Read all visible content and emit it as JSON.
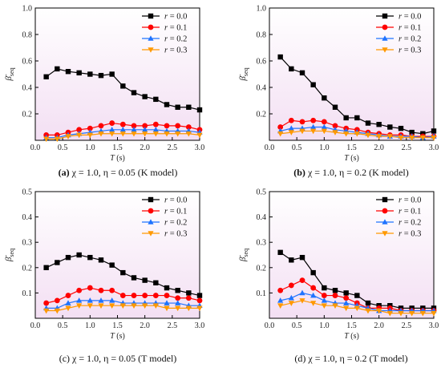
{
  "colors": {
    "plot_bg_top": "#ffffff",
    "plot_bg_bottom": "#f3dff3",
    "series": [
      "#000000",
      "#ff0000",
      "#1e73ff",
      "#ff9900"
    ],
    "markers": [
      "square",
      "circle",
      "triangle-up",
      "triangle-down"
    ]
  },
  "chart_data": [
    {
      "type": "line",
      "caption_tag": "(a)",
      "caption_rest": " χ = 1.0, η = 0.05 (K model)",
      "xlabel": "T (s)",
      "ylabel": "β̄seq",
      "xlim": [
        0.0,
        3.0
      ],
      "ylim": [
        0.0,
        1.0
      ],
      "xticks": [
        "0.0",
        "0.5",
        "1.0",
        "1.5",
        "2.0",
        "2.5",
        "3.0"
      ],
      "yticks": [
        "0.2",
        "0.4",
        "0.6",
        "0.8",
        "1.0"
      ],
      "legend": "top-right",
      "x": [
        0.2,
        0.4,
        0.6,
        0.8,
        1.0,
        1.2,
        1.4,
        1.6,
        1.8,
        2.0,
        2.2,
        2.4,
        2.6,
        2.8,
        3.0
      ],
      "series": [
        {
          "name": "r = 0.0",
          "values": [
            0.48,
            0.54,
            0.52,
            0.51,
            0.5,
            0.49,
            0.5,
            0.41,
            0.36,
            0.33,
            0.31,
            0.27,
            0.25,
            0.25,
            0.23
          ]
        },
        {
          "name": "r = 0.1",
          "values": [
            0.04,
            0.04,
            0.06,
            0.08,
            0.09,
            0.11,
            0.13,
            0.12,
            0.11,
            0.11,
            0.12,
            0.11,
            0.11,
            0.1,
            0.08
          ]
        },
        {
          "name": "r = 0.2",
          "values": [
            0.02,
            0.02,
            0.04,
            0.05,
            0.06,
            0.07,
            0.08,
            0.08,
            0.08,
            0.08,
            0.08,
            0.07,
            0.07,
            0.07,
            0.06
          ]
        },
        {
          "name": "r = 0.3",
          "values": [
            0.01,
            0.01,
            0.03,
            0.04,
            0.04,
            0.05,
            0.05,
            0.05,
            0.05,
            0.05,
            0.05,
            0.05,
            0.05,
            0.05,
            0.04
          ]
        }
      ]
    },
    {
      "type": "line",
      "caption_tag": "(b)",
      "caption_rest": " χ = 1.0, η = 0.2 (K model)",
      "xlabel": "T (s)",
      "ylabel": "β̄seq",
      "xlim": [
        0.0,
        3.0
      ],
      "ylim": [
        0.0,
        1.0
      ],
      "xticks": [
        "0.0",
        "0.5",
        "1.0",
        "1.5",
        "2.0",
        "2.5",
        "3.0"
      ],
      "yticks": [
        "0.2",
        "0.4",
        "0.6",
        "0.8",
        "1.0"
      ],
      "legend": "top-right",
      "x": [
        0.2,
        0.4,
        0.6,
        0.8,
        1.0,
        1.2,
        1.4,
        1.6,
        1.8,
        2.0,
        2.2,
        2.4,
        2.6,
        2.8,
        3.0
      ],
      "series": [
        {
          "name": "r = 0.0",
          "values": [
            0.63,
            0.54,
            0.51,
            0.42,
            0.32,
            0.25,
            0.17,
            0.17,
            0.13,
            0.12,
            0.1,
            0.09,
            0.06,
            0.05,
            0.07
          ]
        },
        {
          "name": "r = 0.1",
          "values": [
            0.1,
            0.15,
            0.14,
            0.15,
            0.14,
            0.11,
            0.09,
            0.08,
            0.06,
            0.05,
            0.04,
            0.04,
            0.03,
            0.03,
            0.03
          ]
        },
        {
          "name": "r = 0.2",
          "values": [
            0.07,
            0.09,
            0.09,
            0.1,
            0.1,
            0.08,
            0.07,
            0.06,
            0.05,
            0.04,
            0.03,
            0.03,
            0.03,
            0.02,
            0.03
          ]
        },
        {
          "name": "r = 0.3",
          "values": [
            0.05,
            0.06,
            0.07,
            0.07,
            0.07,
            0.06,
            0.05,
            0.05,
            0.04,
            0.03,
            0.03,
            0.02,
            0.02,
            0.02,
            0.02
          ]
        }
      ]
    },
    {
      "type": "line",
      "caption_tag": "",
      "caption_rest": "(c) χ = 1.0, η = 0.05 (T model)",
      "xlabel": "T (s)",
      "ylabel": "β̄seq",
      "xlim": [
        0.0,
        3.0
      ],
      "ylim": [
        0.0,
        0.5
      ],
      "xticks": [
        "0.0",
        "0.5",
        "1.0",
        "1.5",
        "2.0",
        "2.5",
        "3.0"
      ],
      "yticks": [
        "0.1",
        "0.2",
        "0.3",
        "0.4",
        "0.5"
      ],
      "legend": "top-right",
      "x": [
        0.2,
        0.4,
        0.6,
        0.8,
        1.0,
        1.2,
        1.4,
        1.6,
        1.8,
        2.0,
        2.2,
        2.4,
        2.6,
        2.8,
        3.0
      ],
      "series": [
        {
          "name": "r = 0.0",
          "values": [
            0.2,
            0.22,
            0.24,
            0.25,
            0.24,
            0.23,
            0.21,
            0.18,
            0.16,
            0.15,
            0.14,
            0.12,
            0.11,
            0.1,
            0.09
          ]
        },
        {
          "name": "r = 0.1",
          "values": [
            0.06,
            0.07,
            0.09,
            0.11,
            0.12,
            0.11,
            0.11,
            0.09,
            0.09,
            0.09,
            0.09,
            0.09,
            0.08,
            0.08,
            0.07
          ]
        },
        {
          "name": "r = 0.2",
          "values": [
            0.04,
            0.04,
            0.06,
            0.07,
            0.07,
            0.07,
            0.07,
            0.06,
            0.06,
            0.06,
            0.06,
            0.06,
            0.06,
            0.05,
            0.05
          ]
        },
        {
          "name": "r = 0.3",
          "values": [
            0.03,
            0.03,
            0.04,
            0.05,
            0.05,
            0.05,
            0.05,
            0.05,
            0.05,
            0.05,
            0.05,
            0.04,
            0.04,
            0.04,
            0.04
          ]
        }
      ]
    },
    {
      "type": "line",
      "caption_tag": "",
      "caption_rest": "(d) χ = 1.0, η = 0.2 (T model)",
      "xlabel": "T (s)",
      "ylabel": "β̄seq",
      "xlim": [
        0.0,
        3.0
      ],
      "ylim": [
        0.0,
        0.5
      ],
      "xticks": [
        "0.0",
        "0.5",
        "1.0",
        "1.5",
        "2.0",
        "2.5",
        "3.0"
      ],
      "yticks": [
        "0.1",
        "0.2",
        "0.3",
        "0.4",
        "0.5"
      ],
      "legend": "top-right",
      "x": [
        0.2,
        0.4,
        0.6,
        0.8,
        1.0,
        1.2,
        1.4,
        1.6,
        1.8,
        2.0,
        2.2,
        2.4,
        2.6,
        2.8,
        3.0
      ],
      "series": [
        {
          "name": "r = 0.0",
          "values": [
            0.26,
            0.23,
            0.24,
            0.18,
            0.12,
            0.11,
            0.1,
            0.09,
            0.06,
            0.05,
            0.05,
            0.04,
            0.04,
            0.04,
            0.04
          ]
        },
        {
          "name": "r = 0.1",
          "values": [
            0.11,
            0.13,
            0.15,
            0.12,
            0.09,
            0.09,
            0.08,
            0.06,
            0.04,
            0.04,
            0.04,
            0.03,
            0.03,
            0.03,
            0.03
          ]
        },
        {
          "name": "r = 0.2",
          "values": [
            0.07,
            0.08,
            0.1,
            0.09,
            0.07,
            0.06,
            0.06,
            0.05,
            0.04,
            0.03,
            0.03,
            0.03,
            0.03,
            0.03,
            0.03
          ]
        },
        {
          "name": "r = 0.3",
          "values": [
            0.05,
            0.06,
            0.07,
            0.06,
            0.05,
            0.05,
            0.04,
            0.04,
            0.03,
            0.03,
            0.02,
            0.02,
            0.02,
            0.02,
            0.02
          ]
        }
      ]
    }
  ]
}
